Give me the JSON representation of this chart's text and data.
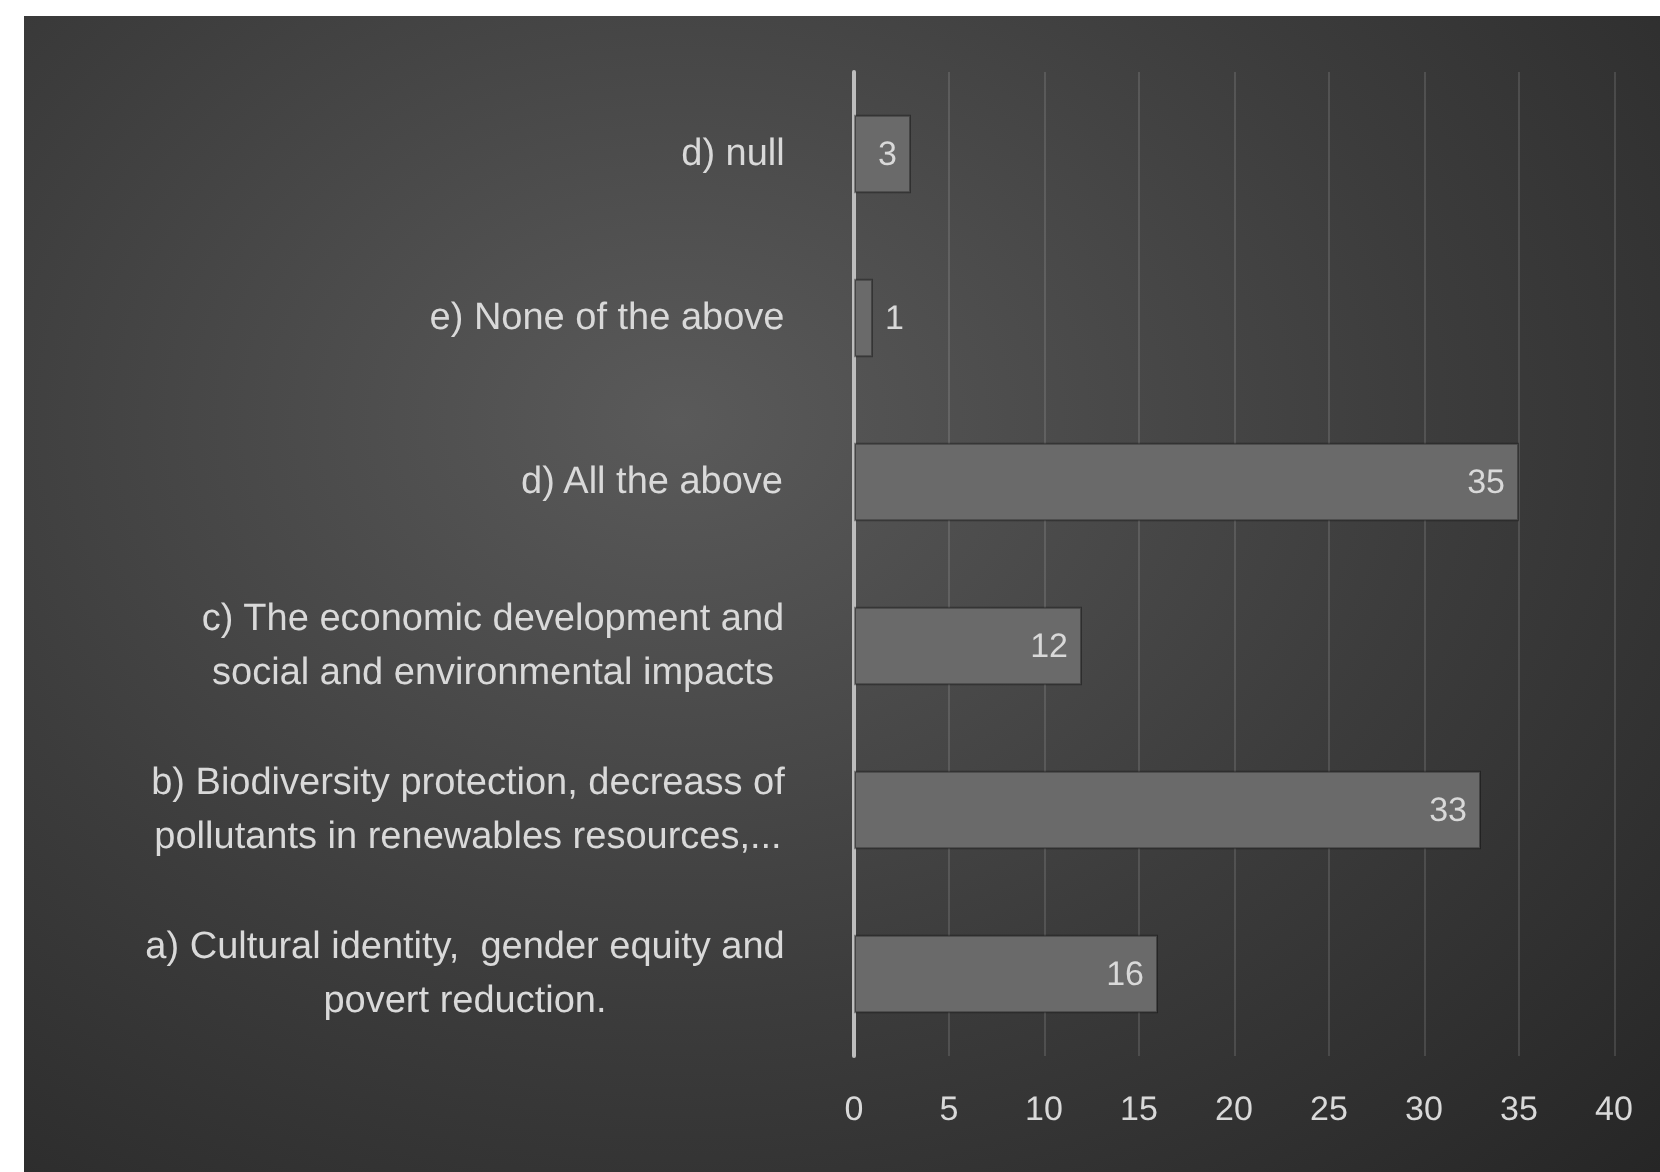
{
  "chart_data": {
    "type": "bar",
    "orientation": "horizontal",
    "categories": [
      "d) null",
      "e) None of the above",
      "d) All the above",
      "c) The economic development and social and environmental impacts",
      "b) Biodiversity protection, decreass of pollutants in renewables resources,...",
      "a) Cultural identity,  gender equity and povert reduction."
    ],
    "values": [
      3,
      1,
      35,
      12,
      33,
      16
    ],
    "color": "#6a6a6a",
    "xlim": [
      0,
      40
    ],
    "xticks": [
      0,
      5,
      10,
      15,
      20,
      25,
      30,
      35,
      40
    ],
    "grid": "x",
    "data_labels": true
  }
}
